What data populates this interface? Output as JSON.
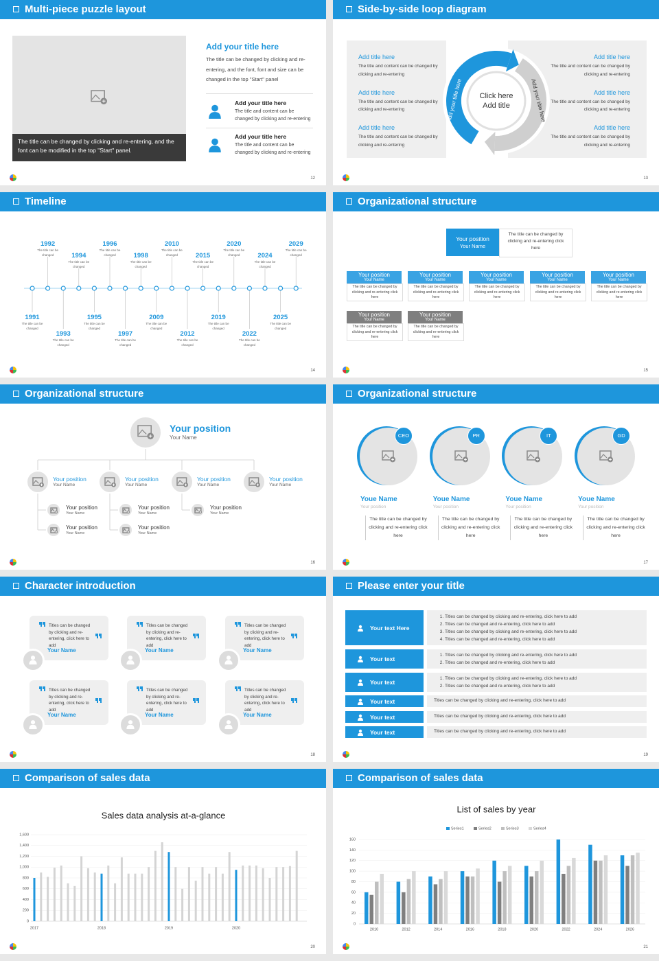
{
  "slides": [
    {
      "title": "Multi-piece puzzle layout",
      "number": "12",
      "caption": "The title can be changed by clicking and re-entering, and the font can be modified in the top \"Start\" panel.",
      "heading": "Add your title here",
      "body": "The title can be changed by clicking and re-entering, and the font, font and size can be changed in the top \"Start\" panel",
      "items": [
        {
          "title": "Add your title here",
          "text": "The title and content can be changed by clicking and re-entering"
        },
        {
          "title": "Add your title here",
          "text": "The title and content can be changed by clicking and re-entering"
        }
      ]
    },
    {
      "title": "Side-by-side loop diagram",
      "number": "13",
      "center": [
        "Click here",
        "Add title"
      ],
      "arc_labels": [
        "Add your title here",
        "Add your title here"
      ],
      "left": [
        {
          "title": "Add title here",
          "text": "The title and content can be changed by clicking and re-entering"
        },
        {
          "title": "Add title here",
          "text": "The title and content can be changed by clicking and re-entering"
        },
        {
          "title": "Add title here",
          "text": "The title and content can be changed by clicking and re-entering"
        }
      ],
      "right": [
        {
          "title": "Add title here",
          "text": "The title and content can be changed by clicking and re-entering"
        },
        {
          "title": "Add title here",
          "text": "The title and content can be changed by clicking and re-entering"
        },
        {
          "title": "Add title here",
          "text": "The title and content can be changed by clicking and re-entering"
        }
      ]
    },
    {
      "title": "Timeline",
      "number": "14",
      "events": [
        {
          "year": "1991",
          "text": "The title can be changed"
        },
        {
          "year": "1992",
          "text": "The title can be changed"
        },
        {
          "year": "1993",
          "text": "The title can be changed"
        },
        {
          "year": "1994",
          "text": "The title can be changed"
        },
        {
          "year": "1995",
          "text": "The title can be changed"
        },
        {
          "year": "1996",
          "text": "The title can be changed"
        },
        {
          "year": "1997",
          "text": "The title can be changed"
        },
        {
          "year": "1998",
          "text": "The title can be changed"
        },
        {
          "year": "2009",
          "text": "The title can be changed"
        },
        {
          "year": "2010",
          "text": "The title can be changed"
        },
        {
          "year": "2012",
          "text": "The title can be changed"
        },
        {
          "year": "2015",
          "text": "The title can be changed"
        },
        {
          "year": "2019",
          "text": "The title can be changed"
        },
        {
          "year": "2020",
          "text": "The title can be changed"
        },
        {
          "year": "2022",
          "text": "The title can be changed"
        },
        {
          "year": "2024",
          "text": "The title can be changed"
        },
        {
          "year": "2025",
          "text": "The title can be changed"
        },
        {
          "year": "2029",
          "text": "The title can be changed"
        }
      ]
    },
    {
      "title": "Organizational structure",
      "number": "15",
      "top": {
        "position": "Your position",
        "name": "Your Name",
        "text": "The title can be changed by clicking and re-entering click here"
      },
      "boxes": [
        {
          "position": "Your position",
          "name": "Your Name",
          "text": "The title can be changed by clicking and re-entering click here"
        },
        {
          "position": "Your position",
          "name": "Your Name",
          "text": "The title can be changed by clicking and re-entering click here"
        },
        {
          "position": "Your position",
          "name": "Your Name",
          "text": "The title can be changed by clicking and re-entering click here"
        },
        {
          "position": "Your position",
          "name": "Your Name",
          "text": "The title can be changed by clicking and re-entering click here"
        },
        {
          "position": "Your position",
          "name": "Your Name",
          "text": "The title can be changed by clicking and re-entering click here"
        },
        {
          "position": "Your position",
          "name": "Your Name",
          "text": "The title can be changed by clicking and re-entering click here"
        },
        {
          "position": "Your position",
          "name": "Your Name",
          "text": "The title can be changed by clicking and re-entering click here"
        }
      ]
    },
    {
      "title": "Organizational structure",
      "number": "16",
      "top": {
        "position": "Your position",
        "name": "Your Name"
      },
      "managers": [
        {
          "position": "Your position",
          "name": "Your Name"
        },
        {
          "position": "Your position",
          "name": "Your Name"
        },
        {
          "position": "Your position",
          "name": "Your Name"
        },
        {
          "position": "Your position",
          "name": "Your Name"
        }
      ],
      "staff": [
        {
          "position": "Your position",
          "name": "Your Name"
        },
        {
          "position": "Your position",
          "name": "Your Name"
        },
        {
          "position": "Your position",
          "name": "Your Name"
        },
        {
          "position": "Your position",
          "name": "Your Name"
        },
        {
          "position": "Your position",
          "name": "Your Name"
        }
      ]
    },
    {
      "title": "Organizational structure",
      "number": "17",
      "cards": [
        {
          "badge": "CEO",
          "name": "Youe Name",
          "role": "Your position",
          "text": "The title can be changed by clicking and re-entering click here"
        },
        {
          "badge": "PR",
          "name": "Youe Name",
          "role": "Your position",
          "text": "The title can be changed by clicking and re-entering click here"
        },
        {
          "badge": "IT",
          "name": "Youe Name",
          "role": "Your position",
          "text": "The title can be changed by clicking and re-entering click here"
        },
        {
          "badge": "GD",
          "name": "Youe Name",
          "role": "Your position",
          "text": "The title can be changed by clicking and re-entering click here"
        }
      ]
    },
    {
      "title": "Character introduction",
      "number": "18",
      "cards": [
        {
          "quote": "Titles can be changed by clicking and re-entering, click here to add",
          "name": "Your Name"
        },
        {
          "quote": "Titles can be changed by clicking and re-entering, click here to add",
          "name": "Your Name"
        },
        {
          "quote": "Titles can be changed by clicking and re-entering, click here to add",
          "name": "Your Name"
        },
        {
          "quote": "Titles can be changed by clicking and re-entering, click here to add",
          "name": "Your Name"
        },
        {
          "quote": "Titles can be changed by clicking and re-entering, click here to add",
          "name": "Your Name"
        },
        {
          "quote": "Titles can be changed by clicking and re-entering, click here to add",
          "name": "Your Name"
        }
      ]
    },
    {
      "title": "Please enter your title",
      "number": "19",
      "rows": [
        {
          "label": "Your text Here",
          "items": [
            "Titles can be changed by clicking and re-entering, click here to add",
            "Titles can be changed and re-entering, click here to add",
            "Titles can be changed by clicking and re-entering, click here to add",
            "Titles can be changed and re-entering, click here to add"
          ]
        },
        {
          "label": "Your text",
          "items": [
            "Titles can be changed by clicking and re-entering, click here to add",
            "Titles can be changed and re-entering, click here to add"
          ]
        },
        {
          "label": "Your text",
          "items": [
            "Titles can be changed by clicking and re-entering, click here to add",
            "Titles can be changed and re-entering, click here to add"
          ]
        },
        {
          "label": "Your text",
          "text": "Titles can be changed by clicking and re-entering, click here to add"
        },
        {
          "label": "Your text",
          "text": "Titles can be changed by clicking and re-entering, click here to add"
        },
        {
          "label": "Your text",
          "text": "Titles can be changed by clicking and re-entering, click here to add"
        }
      ]
    },
    {
      "title": "Comparison of sales data",
      "number": "20",
      "chart": {
        "type": "bar",
        "title": "Sales data analysis at-a-glance",
        "categories": [
          "2017",
          null,
          null,
          null,
          null,
          null,
          null,
          null,
          null,
          null,
          "2018",
          null,
          null,
          null,
          null,
          null,
          null,
          null,
          null,
          null,
          "2019",
          null,
          null,
          null,
          null,
          null,
          null,
          null,
          null,
          null,
          "2020",
          null,
          null,
          null,
          null,
          null,
          null,
          null,
          null,
          null
        ],
        "values": [
          800,
          900,
          820,
          990,
          1030,
          700,
          650,
          1200,
          980,
          900,
          880,
          1030,
          700,
          1180,
          880,
          880,
          880,
          1000,
          1300,
          1460,
          1280,
          1000,
          600,
          1000,
          750,
          1000,
          880,
          1000,
          880,
          1280,
          950,
          1030,
          1030,
          1030,
          980,
          800,
          1000,
          1000,
          1020,
          1300
        ],
        "color": "#d4d4d4",
        "highlight_color": "#1e96dc",
        "ylim": [
          0,
          1600
        ],
        "yticks": [
          0,
          200,
          400,
          600,
          800,
          {
            "value": 1000,
            "label": "1,000"
          },
          {
            "value": 1200,
            "label": "1,200"
          },
          {
            "value": 1400,
            "label": "1,400"
          },
          {
            "value": 1600,
            "label": "1,600"
          }
        ],
        "grid": true
      }
    },
    {
      "title": "Comparison of sales data",
      "number": "21",
      "chart": {
        "type": "bar",
        "title": "List of sales by year",
        "categories": [
          "2010",
          "2012",
          "2014",
          "2016",
          "2018",
          "2020",
          "2022",
          "2024",
          "2026"
        ],
        "series": [
          {
            "name": "Series1",
            "color": "#1e96dc",
            "values": [
              60,
              80,
              90,
              100,
              120,
              110,
              160,
              150,
              130
            ]
          },
          {
            "name": "Series2",
            "color": "#7f7f7f",
            "values": [
              55,
              60,
              75,
              90,
              80,
              90,
              95,
              120,
              110
            ]
          },
          {
            "name": "Series3",
            "color": "#bfbfbf",
            "values": [
              80,
              85,
              85,
              90,
              100,
              100,
              110,
              120,
              130
            ]
          },
          {
            "name": "Series4",
            "color": "#d9d9d9",
            "values": [
              95,
              100,
              100,
              105,
              110,
              120,
              125,
              130,
              135
            ]
          }
        ],
        "ylim": [
          0,
          160
        ],
        "yticks": [
          0,
          20,
          40,
          60,
          80,
          100,
          120,
          140,
          160
        ],
        "grid": true,
        "legend": "top"
      }
    }
  ]
}
